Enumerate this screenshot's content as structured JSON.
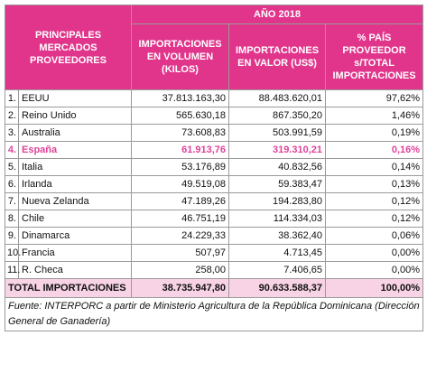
{
  "table": {
    "header": {
      "col0": "PRINCIPALES MERCADOS PROVEEDORES",
      "group": "AÑO 2018",
      "cols": [
        "IMPORTACIONES EN VOLUMEN (KILOS)",
        "IMPORTACIONES EN VALOR (US$)",
        "% PAÍS PROVEEDOR s/TOTAL IMPORTACIONES"
      ]
    },
    "rows": [
      [
        "1.",
        "EEUU",
        "37.813.163,30",
        "88.483.620,01",
        "97,62%"
      ],
      [
        "2.",
        "Reino Unido",
        "565.630,18",
        "867.350,20",
        "1,46%"
      ],
      [
        "3.",
        "Australia",
        "73.608,83",
        "503.991,59",
        "0,19%"
      ],
      [
        "4.",
        "España",
        "61.913,76",
        "319.310,21",
        "0,16%"
      ],
      [
        "5.",
        "Italia",
        "53.176,89",
        "40.832,56",
        "0,14%"
      ],
      [
        "6.",
        "Irlanda",
        "49.519,08",
        "59.383,47",
        "0,13%"
      ],
      [
        "7.",
        "Nueva Zelanda",
        "47.189,26",
        "194.283,80",
        "0,12%"
      ],
      [
        "8.",
        "Chile",
        "46.751,19",
        "114.334,03",
        "0,12%"
      ],
      [
        "9.",
        "Dinamarca",
        "24.229,33",
        "38.362,40",
        "0,06%"
      ],
      [
        "10.",
        "Francia",
        "507,97",
        "4.713,45",
        "0,00%"
      ],
      [
        "11.",
        "R. Checa",
        "258,00",
        "7.406,65",
        "0,00%"
      ]
    ],
    "highlight_row": 3,
    "total": [
      "TOTAL IMPORTACIONES",
      "38.735.947,80",
      "90.633.588,37",
      "100,00%"
    ],
    "source": "Fuente: INTERPORC a partir de Ministerio Agricultura de la República Dominicana (Dirección General de Ganadería)"
  }
}
